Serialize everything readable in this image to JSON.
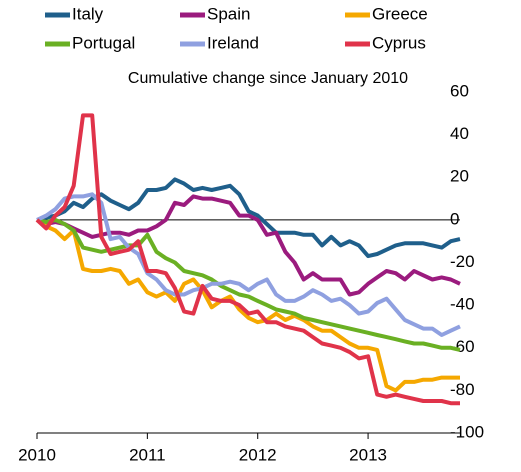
{
  "chart_data": {
    "type": "line",
    "subtitle": "Cumulative change since January 2010",
    "x": [
      2010,
      2010.083,
      2010.167,
      2010.25,
      2010.333,
      2010.417,
      2010.5,
      2010.583,
      2010.667,
      2010.75,
      2010.833,
      2010.917,
      2011,
      2011.083,
      2011.167,
      2011.25,
      2011.333,
      2011.417,
      2011.5,
      2011.583,
      2011.667,
      2011.75,
      2011.833,
      2011.917,
      2012,
      2012.083,
      2012.167,
      2012.25,
      2012.333,
      2012.417,
      2012.5,
      2012.583,
      2012.667,
      2012.75,
      2012.833,
      2012.917,
      2013,
      2013.083,
      2013.167,
      2013.25,
      2013.333,
      2013.417,
      2013.5,
      2013.583,
      2013.667,
      2013.75,
      2013.833
    ],
    "xlim": [
      2010,
      2013.833
    ],
    "xticks": [
      2010,
      2011,
      2012,
      2013
    ],
    "ylim": [
      -100,
      60
    ],
    "yticks": [
      -100,
      -80,
      -60,
      -40,
      -20,
      0,
      20,
      40,
      60
    ],
    "series": [
      {
        "name": "Italy",
        "color": "#1f5f8b",
        "values": [
          0,
          1,
          2,
          4,
          8,
          6,
          10,
          12,
          9,
          7,
          5,
          8,
          14,
          14,
          15,
          19,
          17,
          14,
          15,
          14,
          15,
          16,
          12,
          4,
          2,
          -2,
          -6,
          -6,
          -6,
          -7,
          -7,
          -12,
          -8,
          -12,
          -10,
          -12,
          -17,
          -16,
          -14,
          -12,
          -11,
          -11,
          -11,
          -12,
          -13,
          -10,
          -9
        ]
      },
      {
        "name": "Spain",
        "color": "#9b1b7e",
        "values": [
          0,
          -2,
          -1,
          -2,
          -4,
          -6,
          -8,
          -7,
          -6,
          -6,
          -7,
          -5,
          -5,
          -3,
          0,
          8,
          7,
          11,
          10,
          10,
          9,
          8,
          2,
          2,
          0,
          -7,
          -6,
          -15,
          -20,
          -28,
          -25,
          -28,
          -28,
          -28,
          -35,
          -34,
          -30,
          -27,
          -24,
          -25,
          -28,
          -24,
          -26,
          -28,
          -27,
          -28,
          -30
        ]
      },
      {
        "name": "Greece",
        "color": "#f5a800",
        "values": [
          0,
          -3,
          -5,
          -9,
          -5,
          -23,
          -24,
          -24,
          -23,
          -24,
          -30,
          -28,
          -34,
          -36,
          -34,
          -38,
          -30,
          -28,
          -33,
          -41,
          -38,
          -36,
          -42,
          -46,
          -48,
          -47,
          -44,
          -47,
          -45,
          -47,
          -50,
          -52,
          -52,
          -55,
          -58,
          -60,
          -60,
          -61,
          -78,
          -80,
          -76,
          -76,
          -75,
          -75,
          -74,
          -74,
          -74
        ]
      },
      {
        "name": "Portugal",
        "color": "#6ab023",
        "values": [
          0,
          -1,
          0,
          -2,
          -5,
          -13,
          -14,
          -15,
          -14,
          -13,
          -12,
          -12,
          -7,
          -15,
          -18,
          -20,
          -24,
          -25,
          -26,
          -28,
          -31,
          -33,
          -35,
          -36,
          -38,
          -40,
          -42,
          -43,
          -44,
          -46,
          -47,
          -48,
          -49,
          -50,
          -51,
          -52,
          -53,
          -54,
          -55,
          -56,
          -57,
          -58,
          -58,
          -59,
          -60,
          -60,
          -61
        ]
      },
      {
        "name": "Ireland",
        "color": "#8fa0e0",
        "values": [
          0,
          2,
          5,
          10,
          11,
          11,
          12,
          8,
          -9,
          -8,
          -13,
          -16,
          -25,
          -28,
          -33,
          -35,
          -35,
          -33,
          -32,
          -30,
          -30,
          -29,
          -30,
          -33,
          -30,
          -28,
          -35,
          -38,
          -38,
          -36,
          -33,
          -35,
          -38,
          -37,
          -40,
          -44,
          -43,
          -39,
          -37,
          -42,
          -47,
          -49,
          -51,
          -51,
          -54,
          -52,
          -50
        ]
      },
      {
        "name": "Cyprus",
        "color": "#e0334a",
        "values": [
          0,
          -4,
          2,
          6,
          16,
          49,
          49,
          -8,
          -16,
          -15,
          -14,
          -10,
          -24,
          -24,
          -25,
          -32,
          -43,
          -44,
          -31,
          -37,
          -38,
          -38,
          -40,
          -44,
          -43,
          -48,
          -48,
          -50,
          -51,
          -52,
          -55,
          -58,
          -59,
          -60,
          -62,
          -65,
          -64,
          -82,
          -83,
          -82,
          -83,
          -84,
          -85,
          -85,
          -85,
          -86,
          -86
        ]
      }
    ]
  }
}
